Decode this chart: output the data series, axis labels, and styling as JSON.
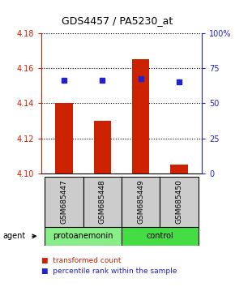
{
  "title": "GDS4457 / PA5230_at",
  "samples": [
    "GSM685447",
    "GSM685448",
    "GSM685449",
    "GSM685450"
  ],
  "bar_values": [
    4.14,
    4.13,
    4.165,
    4.105
  ],
  "bar_base": 4.1,
  "percentile_values": [
    4.153,
    4.153,
    4.154,
    4.152
  ],
  "ylim": [
    4.1,
    4.18
  ],
  "yticks_left": [
    4.1,
    4.12,
    4.14,
    4.16,
    4.18
  ],
  "yticks_right": [
    0,
    25,
    50,
    75,
    100
  ],
  "yticks_right_vals": [
    4.1,
    4.12,
    4.14,
    4.16,
    4.18
  ],
  "bar_color": "#cc2200",
  "percentile_color": "#2222cc",
  "groups": [
    {
      "label": "protoanemonin",
      "samples": [
        0,
        1
      ],
      "color": "#88ee88"
    },
    {
      "label": "control",
      "samples": [
        2,
        3
      ],
      "color": "#44dd44"
    }
  ],
  "sample_box_color": "#cccccc",
  "legend_items": [
    {
      "color": "#cc2200",
      "label": "transformed count"
    },
    {
      "color": "#2222cc",
      "label": "percentile rank within the sample"
    }
  ],
  "agent_label": "agent",
  "left_axis_color": "#cc2200",
  "right_axis_color": "#2222cc",
  "bg_color": "#ffffff"
}
